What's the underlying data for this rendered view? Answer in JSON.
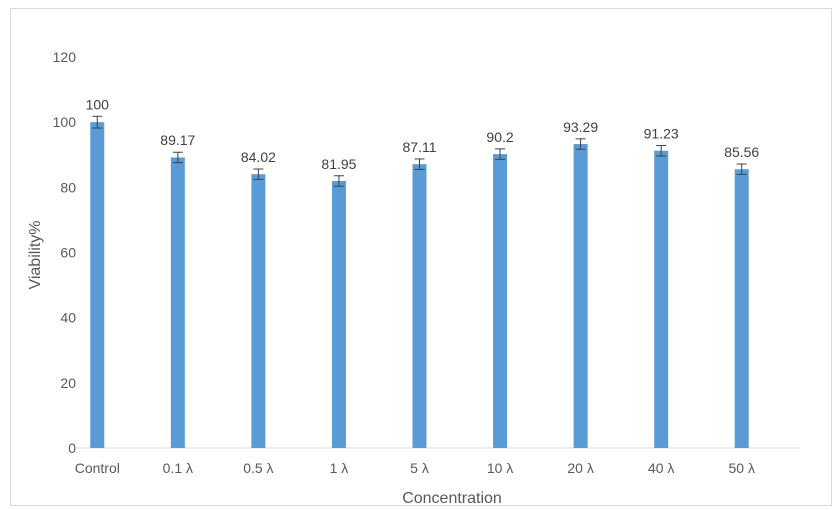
{
  "chart_data": {
    "type": "bar",
    "categories": [
      "Control",
      "0.1 λ",
      "0.5 λ",
      "1 λ",
      "5 λ",
      "10 λ",
      "20 λ",
      "40 λ",
      "50 λ"
    ],
    "values": [
      100,
      89.17,
      84.02,
      81.95,
      87.11,
      90.2,
      93.29,
      91.23,
      85.56
    ],
    "error": [
      1.8,
      1.6,
      1.6,
      1.6,
      1.6,
      1.6,
      1.6,
      1.6,
      1.6
    ],
    "data_labels": [
      "100",
      "89.17",
      "84.02",
      "81.95",
      "87.11",
      "90.2",
      "93.29",
      "91.23",
      "85.56"
    ],
    "xlabel": "Concentration",
    "ylabel": "Viability%",
    "ylim": [
      0,
      120
    ],
    "yticks": [
      "0",
      "20",
      "40",
      "60",
      "80",
      "100",
      "120"
    ],
    "grid": false,
    "legend": "none",
    "colors": {
      "bar": "#5b9bd5",
      "error_bar": "#404040",
      "text": "#595959"
    }
  }
}
